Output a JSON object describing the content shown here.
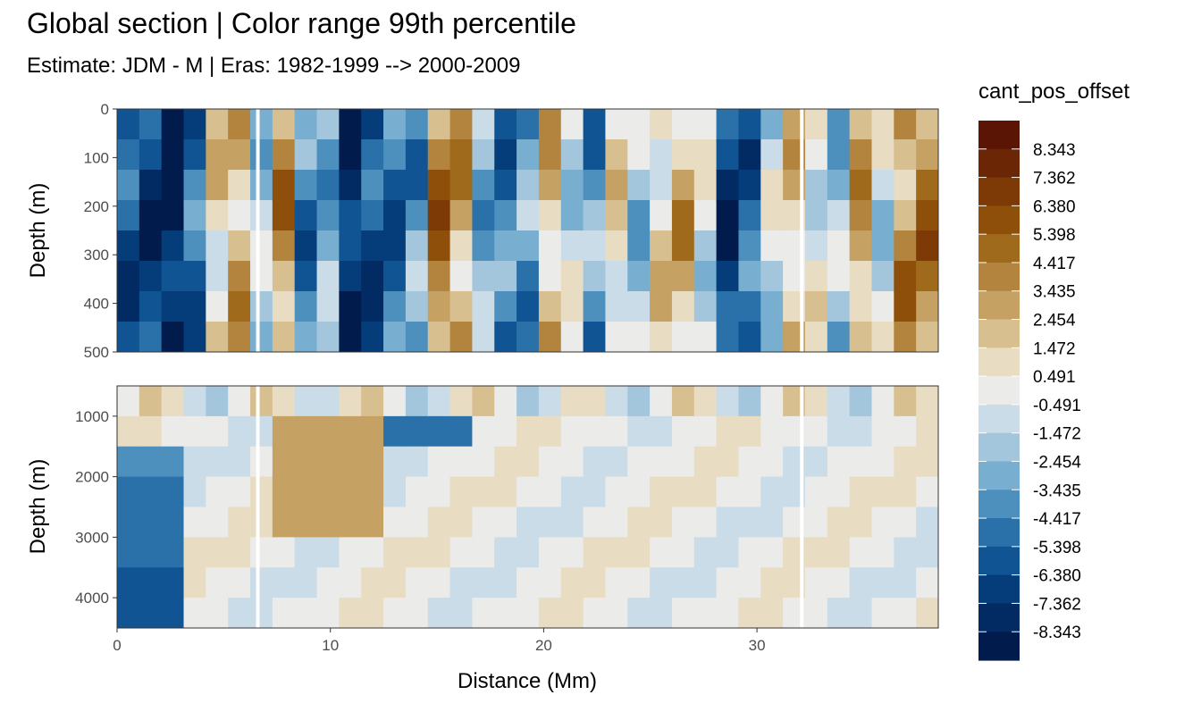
{
  "title": "Global section | Color range 99th percentile",
  "subtitle": "Estimate: JDM - M | Eras: 1982-1999 --> 2000-2009",
  "chart_data": {
    "type": "heatmap",
    "xlabel": "Distance (Mm)",
    "ylabel": "Depth (m)",
    "xlim": [
      0,
      38.5
    ],
    "x_ticks": [
      "0",
      "10",
      "20",
      "30"
    ],
    "panels": [
      {
        "ylim": [
          0,
          500
        ],
        "y_ticks": [
          "0",
          "100",
          "200",
          "300",
          "400",
          "500"
        ]
      },
      {
        "ylim": [
          500,
          4500
        ],
        "y_ticks": [
          "1000",
          "2000",
          "3000",
          "4000"
        ]
      }
    ],
    "legend": {
      "title": "cant_pos_offset",
      "labels": [
        "8.343",
        "7.362",
        "6.380",
        "5.398",
        "4.417",
        "3.435",
        "2.454",
        "1.472",
        "0.491",
        "-0.491",
        "-1.472",
        "-2.454",
        "-3.435",
        "-4.417",
        "-5.398",
        "-6.380",
        "-7.362",
        "-8.343"
      ],
      "colors": [
        "#5a1504",
        "#6b2606",
        "#7d3a07",
        "#8e4f0a",
        "#a06a1c",
        "#b3843e",
        "#c5a264",
        "#d7bf90",
        "#e8dcc3",
        "#ebebe9",
        "#c9dce8",
        "#a3c6dc",
        "#78aecf",
        "#4d8fbd",
        "#2a71a9",
        "#105493",
        "#053d7a",
        "#022a63",
        "#011b4c"
      ]
    },
    "gaps_x": [
      6.6,
      32.1
    ],
    "grid": false
  }
}
